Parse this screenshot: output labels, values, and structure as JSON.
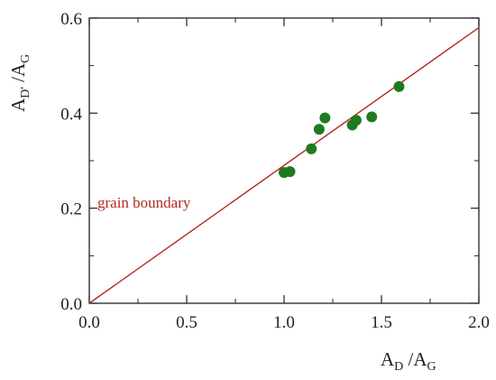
{
  "chart_data": {
    "type": "scatter",
    "xlim": [
      0.0,
      2.0
    ],
    "ylim": [
      0.0,
      0.6
    ],
    "x_ticks": [
      "0.0",
      "0.5",
      "1.0",
      "1.5",
      "2.0"
    ],
    "y_ticks": [
      "0.0",
      "0.2",
      "0.4",
      "0.6"
    ],
    "xlabel": {
      "main": "A",
      "sub1": "D",
      "sep": " /A",
      "sub2": "G"
    },
    "ylabel": {
      "main": "A",
      "sub1": "D'",
      "sep": " /A",
      "sub2": "G"
    },
    "points": [
      {
        "x": 1.0,
        "y": 0.275
      },
      {
        "x": 1.03,
        "y": 0.277
      },
      {
        "x": 1.14,
        "y": 0.325
      },
      {
        "x": 1.18,
        "y": 0.366
      },
      {
        "x": 1.21,
        "y": 0.39
      },
      {
        "x": 1.35,
        "y": 0.375
      },
      {
        "x": 1.37,
        "y": 0.385
      },
      {
        "x": 1.45,
        "y": 0.392
      },
      {
        "x": 1.59,
        "y": 0.456
      }
    ],
    "line": {
      "name": "grain boundary",
      "x": [
        0.0,
        2.0
      ],
      "y": [
        0.0,
        0.58
      ]
    },
    "annotation": "grain boundary",
    "colors": {
      "points": "#1f7a1f",
      "line": "#b22a22"
    },
    "grid": false
  }
}
